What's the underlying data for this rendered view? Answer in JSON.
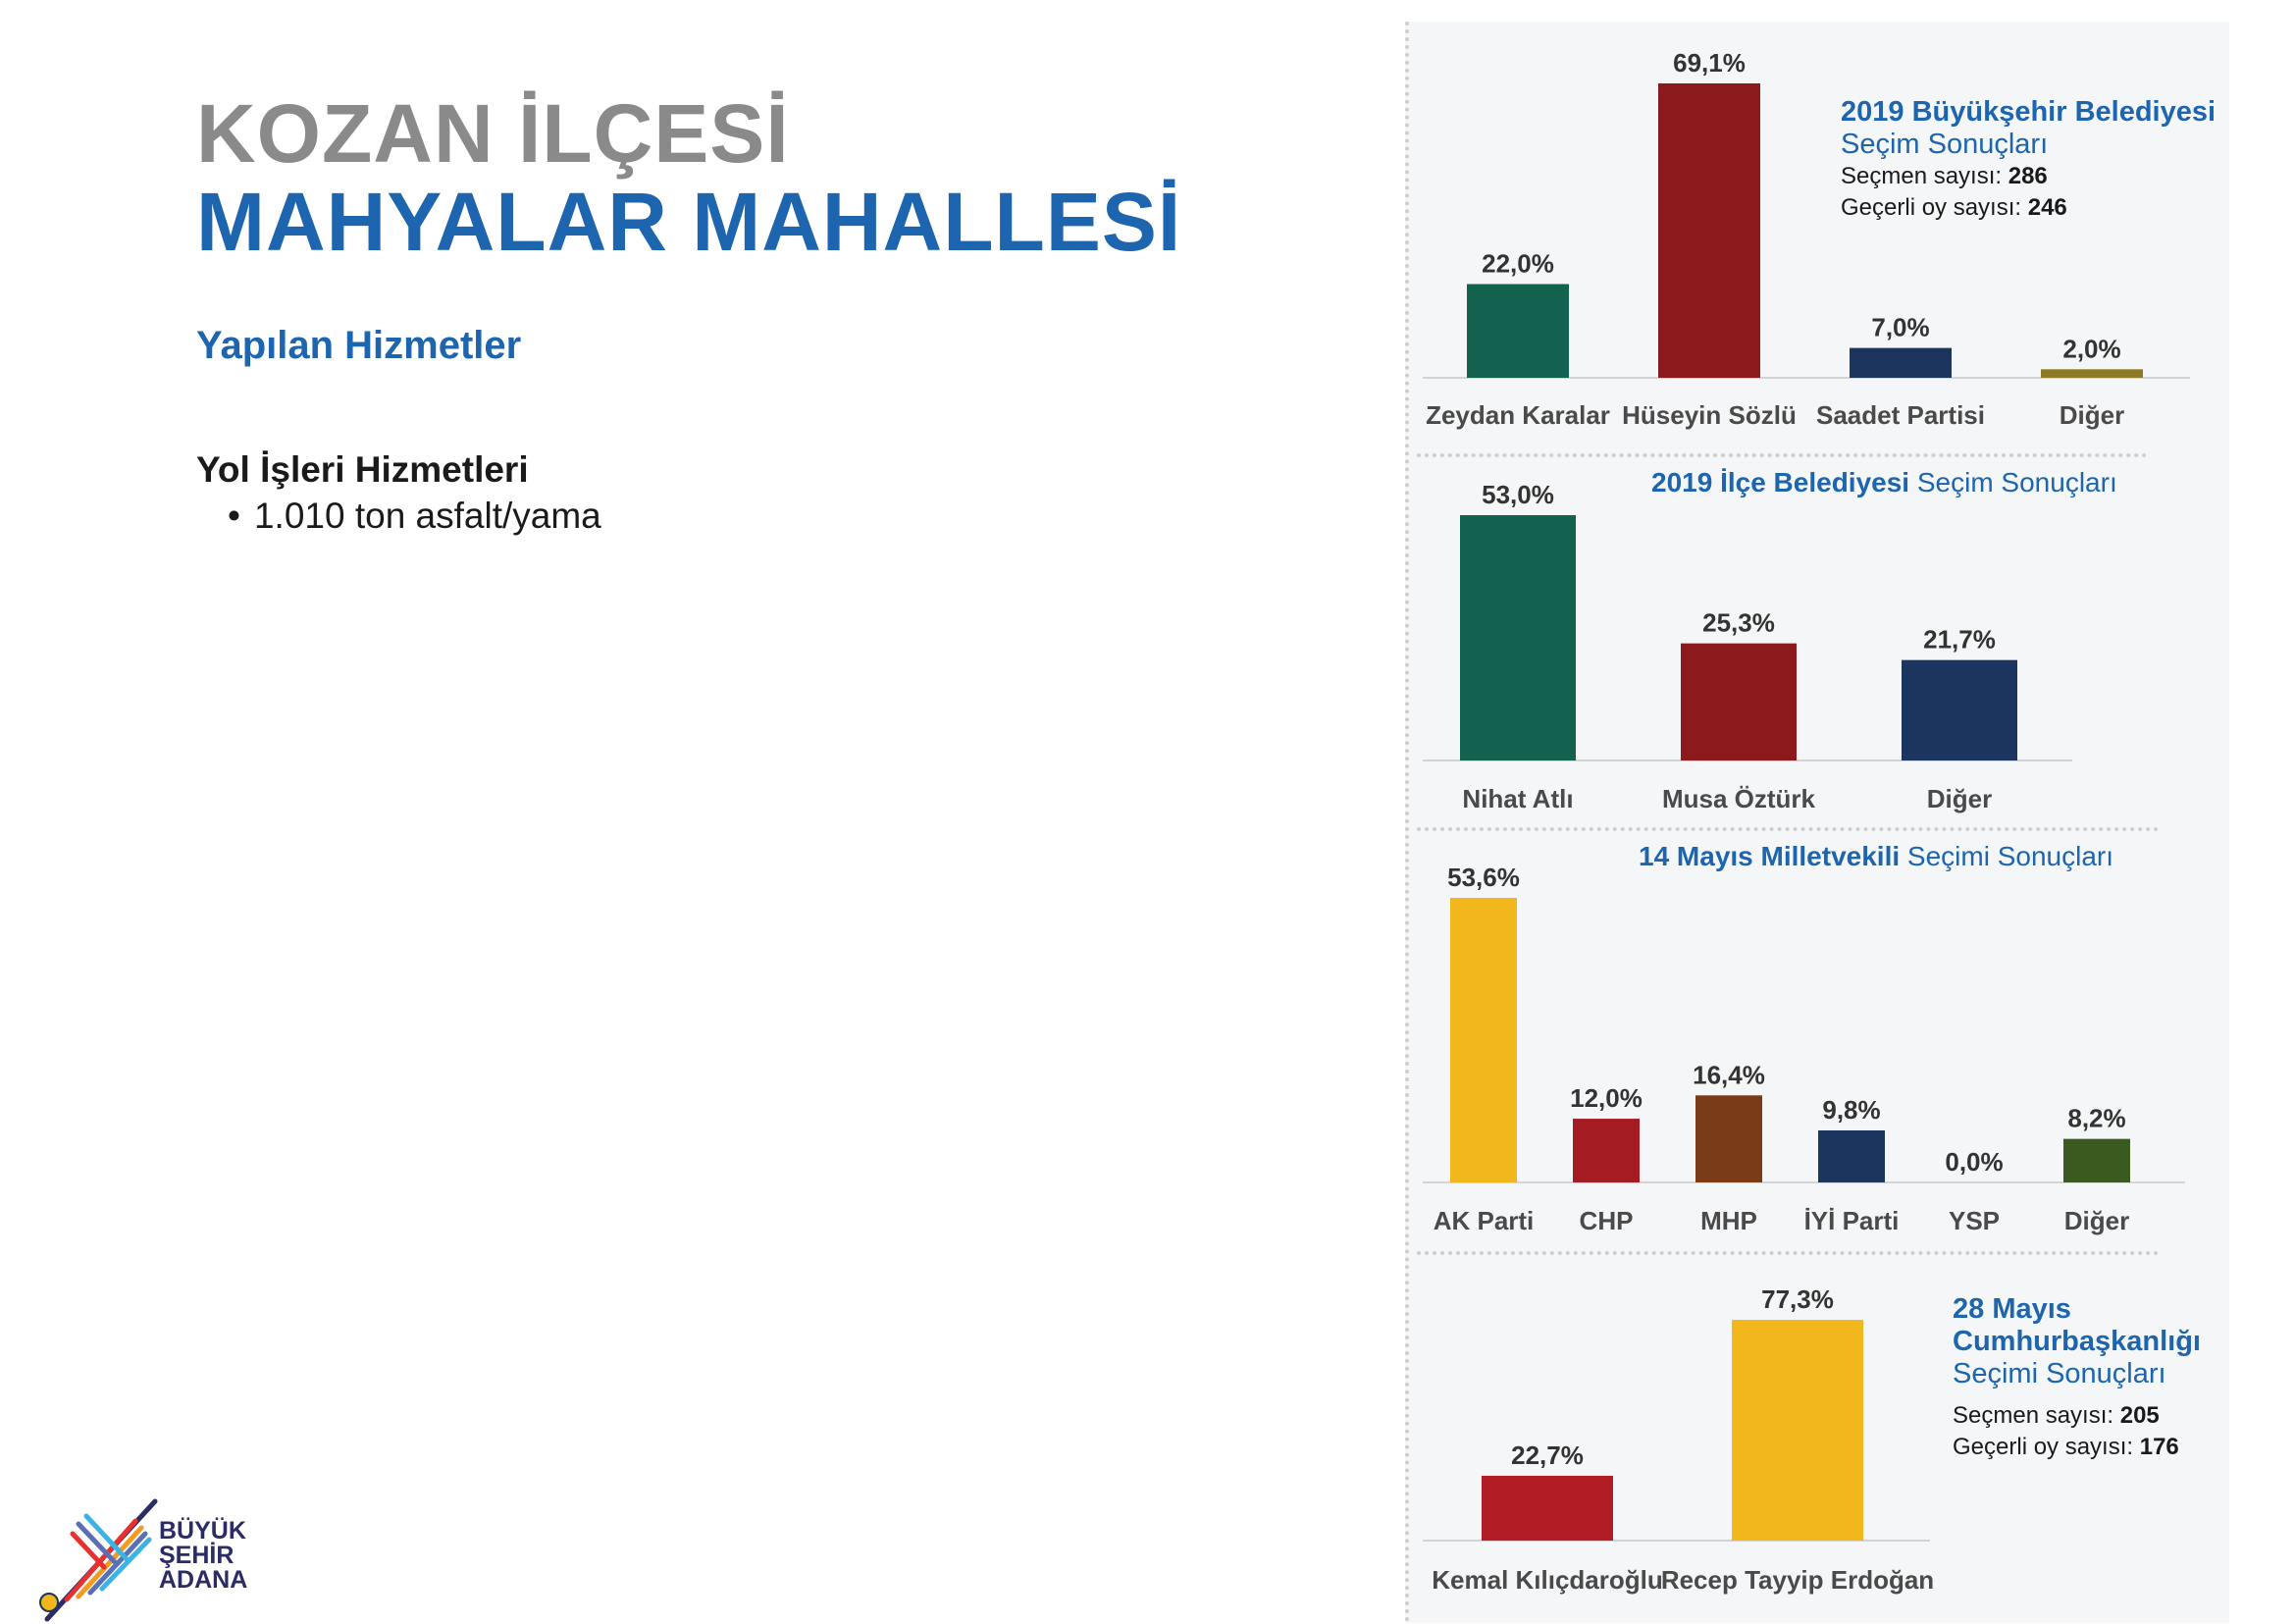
{
  "header": {
    "title_line1": "KOZAN İLÇESİ",
    "title_line2": "MAHYALAR MAHALLESİ"
  },
  "services": {
    "heading": "Yapılan Hizmetler",
    "subheading": "Yol İşleri Hizmetleri",
    "items": [
      "1.010 ton asfalt/yama"
    ]
  },
  "logo": {
    "line1": "BÜYÜK",
    "line2": "ŞEHİR",
    "line3": "ADANA"
  },
  "colors": {
    "accent_blue": "#1d65ae",
    "title_gray": "#8a8a8a",
    "teal": "#12624f",
    "dark_red": "#8c1a1d",
    "red": "#a41c22",
    "navy": "#1c355e",
    "olive": "#8e7a24",
    "yellow": "#f2b71c",
    "brown": "#7a3b19",
    "green": "#3b5a1f"
  },
  "info": {
    "c1": {
      "line1": "2019 Büyükşehir Belediyesi",
      "line2": "Seçim Sonuçları",
      "voters_label": "Seçmen sayısı:",
      "voters_value": "286",
      "valid_label": "Geçerli oy sayısı:",
      "valid_value": "246"
    },
    "c2": {
      "bold": "2019 İlçe Belediyesi",
      "normal": "Seçim Sonuçları"
    },
    "c3": {
      "bold": "14 Mayıs Milletvekili",
      "normal": "Seçimi Sonuçları"
    },
    "c4": {
      "line1": "28 Mayıs",
      "line2": "Cumhurbaşkanlığı",
      "line3": "Seçimi Sonuçları",
      "voters_label": "Seçmen sayısı:",
      "voters_value": "205",
      "valid_label": "Geçerli oy sayısı:",
      "valid_value": "176"
    }
  },
  "chart_data": [
    {
      "type": "bar",
      "categories": [
        "Zeydan Karalar",
        "Hüseyin Sözlü",
        "Saadet Partisi",
        "Diğer"
      ],
      "values": [
        22.0,
        69.1,
        7.0,
        2.0
      ],
      "labels": [
        "22,0%",
        "69,1%",
        "7,0%",
        "2,0%"
      ],
      "colors": [
        "#12624f",
        "#8c1a1d",
        "#1c355e",
        "#8e7a24"
      ],
      "title": "2019 Büyükşehir Belediyesi Seçim Sonuçları"
    },
    {
      "type": "bar",
      "categories": [
        "Nihat Atlı",
        "Musa Öztürk",
        "Diğer"
      ],
      "values": [
        53.0,
        25.3,
        21.7
      ],
      "labels": [
        "53,0%",
        "25,3%",
        "21,7%"
      ],
      "colors": [
        "#12624f",
        "#8c1a1d",
        "#1c355e"
      ],
      "title": "2019 İlçe Belediyesi Seçim Sonuçları"
    },
    {
      "type": "bar",
      "categories": [
        "AK Parti",
        "CHP",
        "MHP",
        "İYİ Parti",
        "YSP",
        "Diğer"
      ],
      "values": [
        53.6,
        12.0,
        16.4,
        9.8,
        0.0,
        8.2
      ],
      "labels": [
        "53,6%",
        "12,0%",
        "16,4%",
        "9,8%",
        "0,0%",
        "8,2%"
      ],
      "colors": [
        "#f2b71c",
        "#a41c22",
        "#7a3b19",
        "#1c355e",
        "#9a9a9a",
        "#3b5a1f"
      ],
      "title": "14 Mayıs Milletvekili Seçimi Sonuçları"
    },
    {
      "type": "bar",
      "categories": [
        "Kemal Kılıçdaroğlu",
        "Recep Tayyip Erdoğan"
      ],
      "values": [
        22.7,
        77.3
      ],
      "labels": [
        "22,7%",
        "77,3%"
      ],
      "colors": [
        "#b21c24",
        "#f2b71c"
      ],
      "title": "28 Mayıs Cumhurbaşkanlığı Seçimi Sonuçları"
    }
  ]
}
